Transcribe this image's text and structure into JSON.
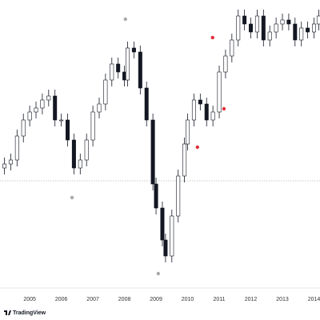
{
  "chart_data": {
    "type": "candlestick",
    "x": [
      2004.2,
      2004.4,
      2004.6,
      2004.8,
      2005.0,
      2005.2,
      2005.4,
      2005.6,
      2005.8,
      2006.0,
      2006.2,
      2006.4,
      2006.6,
      2006.8,
      2007.0,
      2007.2,
      2007.4,
      2007.6,
      2007.8,
      2008.0,
      2008.1,
      2008.3,
      2008.5,
      2008.7,
      2008.9,
      2009.0,
      2009.2,
      2009.3,
      2009.5,
      2009.7,
      2009.9,
      2010.0,
      2010.2,
      2010.4,
      2010.6,
      2010.8,
      2011.0,
      2011.2,
      2011.4,
      2011.6,
      2011.8,
      2012.0,
      2012.2,
      2012.4,
      2012.6,
      2012.8,
      2013.0,
      2013.2,
      2013.4,
      2013.6,
      2013.8,
      2014.0,
      2014.15
    ],
    "open": [
      150,
      155,
      160,
      190,
      210,
      220,
      225,
      235,
      240,
      210,
      210,
      185,
      150,
      160,
      185,
      220,
      230,
      260,
      280,
      270,
      260,
      300,
      295,
      250,
      210,
      130,
      100,
      60,
      40,
      90,
      140,
      180,
      210,
      235,
      230,
      210,
      220,
      270,
      290,
      310,
      340,
      330,
      320,
      340,
      310,
      320,
      330,
      335,
      330,
      310,
      325,
      320,
      330
    ],
    "high": [
      163,
      168,
      198,
      218,
      228,
      233,
      243,
      248,
      248,
      218,
      218,
      193,
      168,
      193,
      228,
      238,
      268,
      288,
      288,
      278,
      308,
      308,
      303,
      258,
      218,
      138,
      108,
      68,
      98,
      148,
      188,
      218,
      243,
      243,
      238,
      228,
      278,
      298,
      318,
      348,
      348,
      338,
      348,
      348,
      328,
      338,
      343,
      343,
      338,
      333,
      333,
      338,
      348
    ],
    "low": [
      142,
      147,
      152,
      182,
      202,
      212,
      217,
      227,
      202,
      202,
      177,
      142,
      142,
      152,
      177,
      212,
      222,
      252,
      262,
      252,
      252,
      287,
      242,
      202,
      122,
      92,
      52,
      32,
      32,
      82,
      132,
      172,
      202,
      222,
      202,
      202,
      212,
      262,
      282,
      302,
      322,
      312,
      312,
      302,
      302,
      312,
      322,
      322,
      302,
      302,
      312,
      312,
      322
    ],
    "close": [
      155,
      160,
      190,
      210,
      220,
      225,
      235,
      240,
      210,
      210,
      185,
      150,
      160,
      185,
      220,
      230,
      260,
      280,
      270,
      260,
      300,
      295,
      250,
      210,
      130,
      100,
      60,
      40,
      90,
      140,
      180,
      210,
      235,
      230,
      210,
      220,
      270,
      290,
      310,
      340,
      330,
      320,
      340,
      310,
      320,
      330,
      335,
      330,
      310,
      325,
      320,
      330,
      340
    ],
    "up_color": "#ffffff",
    "down_color": "#131722",
    "wick_color": "#131722",
    "xlim": [
      2004.06,
      2014.19
    ],
    "xticks": [
      2005,
      2006,
      2007,
      2008,
      2009,
      2010,
      2011,
      2012,
      2013,
      2014
    ],
    "ylim": [
      0,
      360
    ],
    "price_line": 134,
    "markers": [
      {
        "x": 2010.79,
        "y": 313,
        "color": "#e0303a"
      },
      {
        "x": 2011.15,
        "y": 224,
        "color": "#e0303a"
      },
      {
        "x": 2010.31,
        "y": 176,
        "color": "#e0303a"
      },
      {
        "x": 2008.03,
        "y": 336,
        "color": "#a8a8a8"
      },
      {
        "x": 2006.34,
        "y": 113,
        "color": "#a8a8a8"
      },
      {
        "x": 2009.07,
        "y": 18,
        "color": "#a8a8a8"
      }
    ],
    "watermark": "TradingView"
  }
}
